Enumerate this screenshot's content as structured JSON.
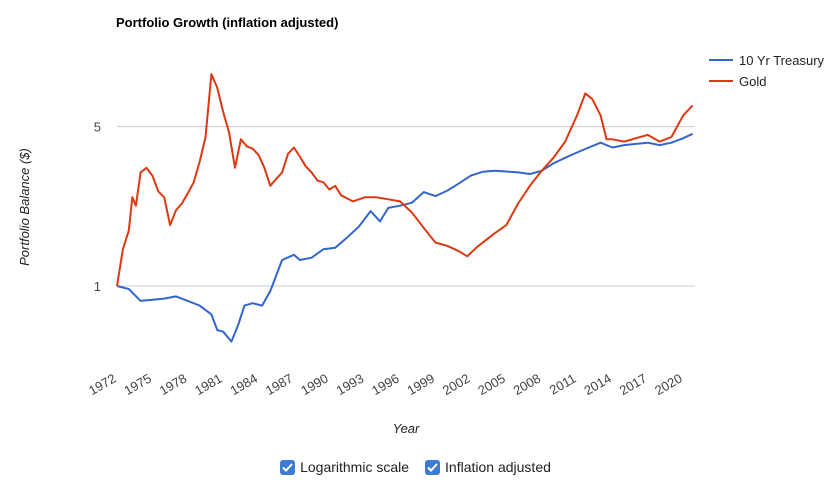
{
  "chart_data": {
    "type": "line",
    "title": "Portfolio Growth (inflation adjusted)",
    "xlabel": "Year",
    "ylabel": "Portfolio Balance ($)",
    "y_scale": "log",
    "yticks": [
      1,
      5
    ],
    "xticks": [
      "1972",
      "1975",
      "1978",
      "1981",
      "1984",
      "1987",
      "1990",
      "1993",
      "1996",
      "1999",
      "2002",
      "2005",
      "2008",
      "2011",
      "2014",
      "2017",
      "2020"
    ],
    "xlim": [
      1972,
      2021
    ],
    "ylim": [
      0.45,
      12
    ],
    "grid": true,
    "legend_position": "top-right",
    "series": [
      {
        "name": "10 Yr Treasury",
        "color": "#3366cc",
        "points": [
          [
            1972.0,
            1.0
          ],
          [
            1973.0,
            0.97
          ],
          [
            1974.0,
            0.86
          ],
          [
            1975.0,
            0.87
          ],
          [
            1976.0,
            0.88
          ],
          [
            1977.0,
            0.9
          ],
          [
            1978.0,
            0.86
          ],
          [
            1979.0,
            0.82
          ],
          [
            1980.0,
            0.75
          ],
          [
            1980.5,
            0.64
          ],
          [
            1981.0,
            0.63
          ],
          [
            1981.7,
            0.57
          ],
          [
            1982.3,
            0.68
          ],
          [
            1982.8,
            0.82
          ],
          [
            1983.5,
            0.84
          ],
          [
            1984.3,
            0.82
          ],
          [
            1985.0,
            0.95
          ],
          [
            1986.0,
            1.3
          ],
          [
            1987.0,
            1.37
          ],
          [
            1987.5,
            1.3
          ],
          [
            1988.5,
            1.33
          ],
          [
            1989.5,
            1.45
          ],
          [
            1990.5,
            1.47
          ],
          [
            1991.5,
            1.63
          ],
          [
            1992.5,
            1.82
          ],
          [
            1993.5,
            2.13
          ],
          [
            1994.3,
            1.92
          ],
          [
            1995.0,
            2.2
          ],
          [
            1996.0,
            2.25
          ],
          [
            1997.0,
            2.32
          ],
          [
            1998.0,
            2.58
          ],
          [
            1999.0,
            2.48
          ],
          [
            2000.0,
            2.62
          ],
          [
            2001.0,
            2.82
          ],
          [
            2002.0,
            3.05
          ],
          [
            2003.0,
            3.17
          ],
          [
            2004.0,
            3.2
          ],
          [
            2005.0,
            3.18
          ],
          [
            2006.0,
            3.15
          ],
          [
            2007.0,
            3.1
          ],
          [
            2008.0,
            3.2
          ],
          [
            2009.0,
            3.45
          ],
          [
            2010.0,
            3.65
          ],
          [
            2011.0,
            3.85
          ],
          [
            2012.0,
            4.05
          ],
          [
            2013.0,
            4.25
          ],
          [
            2014.0,
            4.05
          ],
          [
            2015.0,
            4.15
          ],
          [
            2016.0,
            4.2
          ],
          [
            2017.0,
            4.25
          ],
          [
            2018.0,
            4.15
          ],
          [
            2019.0,
            4.25
          ],
          [
            2020.0,
            4.45
          ],
          [
            2020.8,
            4.65
          ]
        ]
      },
      {
        "name": "Gold",
        "color": "#dc3912",
        "points": [
          [
            1972.0,
            1.0
          ],
          [
            1972.5,
            1.45
          ],
          [
            1973.0,
            1.75
          ],
          [
            1973.3,
            2.45
          ],
          [
            1973.6,
            2.25
          ],
          [
            1974.0,
            3.15
          ],
          [
            1974.5,
            3.3
          ],
          [
            1975.0,
            3.05
          ],
          [
            1975.5,
            2.6
          ],
          [
            1976.0,
            2.45
          ],
          [
            1976.5,
            1.85
          ],
          [
            1977.0,
            2.15
          ],
          [
            1977.5,
            2.3
          ],
          [
            1978.0,
            2.55
          ],
          [
            1978.5,
            2.85
          ],
          [
            1979.0,
            3.5
          ],
          [
            1979.5,
            4.5
          ],
          [
            1980.0,
            8.5
          ],
          [
            1980.5,
            7.4
          ],
          [
            1981.0,
            5.8
          ],
          [
            1981.5,
            4.7
          ],
          [
            1982.0,
            3.3
          ],
          [
            1982.5,
            4.4
          ],
          [
            1983.0,
            4.1
          ],
          [
            1983.5,
            4.0
          ],
          [
            1984.0,
            3.75
          ],
          [
            1984.5,
            3.3
          ],
          [
            1985.0,
            2.75
          ],
          [
            1985.5,
            2.95
          ],
          [
            1986.0,
            3.15
          ],
          [
            1986.5,
            3.8
          ],
          [
            1987.0,
            4.05
          ],
          [
            1987.5,
            3.7
          ],
          [
            1988.0,
            3.35
          ],
          [
            1988.5,
            3.15
          ],
          [
            1989.0,
            2.9
          ],
          [
            1989.5,
            2.85
          ],
          [
            1990.0,
            2.65
          ],
          [
            1990.5,
            2.75
          ],
          [
            1991.0,
            2.5
          ],
          [
            1992.0,
            2.35
          ],
          [
            1993.0,
            2.45
          ],
          [
            1994.0,
            2.45
          ],
          [
            1995.0,
            2.4
          ],
          [
            1996.0,
            2.35
          ],
          [
            1997.0,
            2.1
          ],
          [
            1998.0,
            1.8
          ],
          [
            1999.0,
            1.55
          ],
          [
            2000.0,
            1.5
          ],
          [
            2001.0,
            1.42
          ],
          [
            2001.7,
            1.35
          ],
          [
            2002.5,
            1.48
          ],
          [
            2003.0,
            1.55
          ],
          [
            2004.0,
            1.7
          ],
          [
            2005.0,
            1.85
          ],
          [
            2006.0,
            2.3
          ],
          [
            2007.0,
            2.75
          ],
          [
            2008.0,
            3.2
          ],
          [
            2009.0,
            3.65
          ],
          [
            2010.0,
            4.3
          ],
          [
            2011.0,
            5.6
          ],
          [
            2011.7,
            7.0
          ],
          [
            2012.3,
            6.6
          ],
          [
            2013.0,
            5.6
          ],
          [
            2013.5,
            4.4
          ],
          [
            2014.0,
            4.4
          ],
          [
            2015.0,
            4.3
          ],
          [
            2016.0,
            4.45
          ],
          [
            2017.0,
            4.6
          ],
          [
            2018.0,
            4.3
          ],
          [
            2019.0,
            4.5
          ],
          [
            2020.0,
            5.6
          ],
          [
            2020.8,
            6.2
          ]
        ]
      }
    ]
  },
  "controls": {
    "log_scale_label": "Logarithmic scale",
    "log_scale_checked": true,
    "inflation_label": "Inflation adjusted",
    "inflation_checked": true
  }
}
